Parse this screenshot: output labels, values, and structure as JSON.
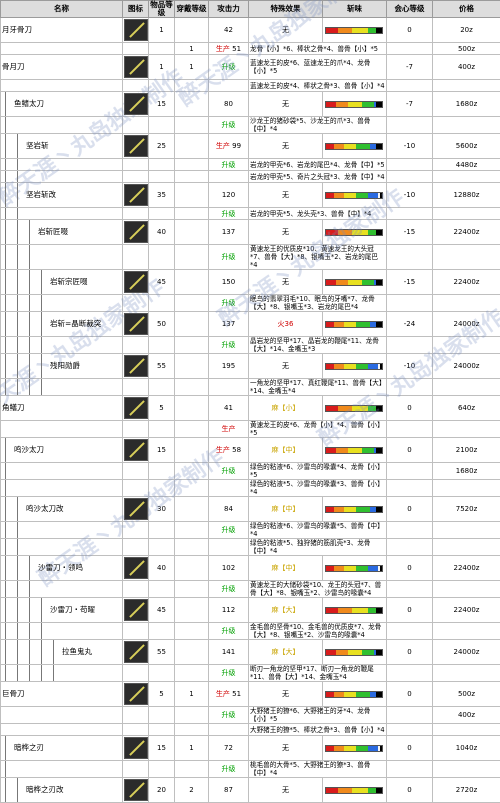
{
  "headers": {
    "name": "名称",
    "icon": "图标",
    "level": "物品等级",
    "slots": "穿戴等级",
    "attack": "攻击力",
    "special": "特殊效果",
    "sharp": "斩味",
    "crit": "会心等级",
    "price": "价格"
  },
  "watermark_text": "醉天涯丶丸岛独家制作",
  "rows": [
    {
      "name": "月牙骨刀",
      "indent": 0,
      "level": "1",
      "slots": "",
      "note": "",
      "attack": "42",
      "special": "无",
      "mat": "",
      "crit": "0",
      "price": "20z"
    },
    {
      "name": "",
      "indent": 0,
      "level": "",
      "slots": "1",
      "note": "生产",
      "attack": "51",
      "special": "无",
      "mat": "龙骨【小】*6、棒状之骨*4、兽骨【小】*5",
      "crit": "",
      "price": "500z"
    },
    {
      "name": "骨月刀",
      "indent": 0,
      "level": "1",
      "slots": "1",
      "note": "升级",
      "attack": "",
      "special": "",
      "mat": "蓝速龙王的皮*6、蓝速龙王的爪*4、龙骨【小】*5",
      "crit": "-7",
      "price": "400z"
    },
    {
      "name": "",
      "indent": 0,
      "level": "",
      "slots": "",
      "note": "",
      "attack": "",
      "special": "",
      "mat": "蓝速龙王的皮*4、棒状之骨*3、兽骨【小】*4",
      "crit": "",
      "price": ""
    },
    {
      "name": "鱼鳍太刀",
      "indent": 1,
      "level": "15",
      "slots": "",
      "note": "",
      "attack": "80",
      "special": "无",
      "mat": "",
      "crit": "-7",
      "price": "1680z"
    },
    {
      "name": "",
      "indent": 1,
      "level": "",
      "slots": "",
      "note": "升级",
      "attack": "",
      "special": "",
      "mat": "沙龙王的猪砂袋*5、沙龙王的爪*3、兽骨【中】*4",
      "crit": "",
      "price": ""
    },
    {
      "name": "坚岩斩",
      "indent": 2,
      "level": "25",
      "slots": "",
      "note": "生产",
      "attack": "99",
      "special": "无",
      "mat": "",
      "crit": "-10",
      "price": "5600z"
    },
    {
      "name": "",
      "indent": 2,
      "level": "",
      "slots": "",
      "note": "升级",
      "attack": "",
      "special": "",
      "mat": "岩龙的甲壳*6、岩龙的尾巴*4、龙骨【中】*5",
      "crit": "",
      "price": "4480z"
    },
    {
      "name": "",
      "indent": 2,
      "level": "",
      "slots": "",
      "note": "",
      "attack": "",
      "special": "",
      "mat": "岩龙的甲壳*5、奇片之头冠*3、龙骨【中】*4",
      "crit": "",
      "price": ""
    },
    {
      "name": "坚岩斩改",
      "indent": 2,
      "level": "35",
      "slots": "",
      "note": "",
      "attack": "120",
      "special": "无",
      "mat": "",
      "crit": "-10",
      "price": "12880z"
    },
    {
      "name": "",
      "indent": 2,
      "level": "",
      "slots": "",
      "note": "升级",
      "attack": "",
      "special": "",
      "mat": "岩龙的甲壳*5、龙头壳*3、兽骨【中】*4",
      "crit": "",
      "price": ""
    },
    {
      "name": "岩斩匠啜",
      "indent": 3,
      "level": "40",
      "slots": "",
      "note": "",
      "attack": "137",
      "special": "无",
      "mat": "",
      "crit": "-15",
      "price": "22400z"
    },
    {
      "name": "",
      "indent": 3,
      "level": "",
      "slots": "",
      "note": "升级",
      "attack": "",
      "special": "",
      "mat": "黄速龙王的优质皮*10、黄速龙王的大头冠*7、兽骨【大】*8、银嘴玉*2、岩龙的尾巴*4",
      "crit": "",
      "price": ""
    },
    {
      "name": "岩斩宗匠啜",
      "indent": 4,
      "level": "45",
      "slots": "",
      "note": "",
      "attack": "150",
      "special": "无",
      "mat": "",
      "crit": "-15",
      "price": "22400z"
    },
    {
      "name": "",
      "indent": 4,
      "level": "",
      "slots": "",
      "note": "升级",
      "attack": "",
      "special": "",
      "mat": "眠鸟的翡翠羽毛*10、眠鸟的牙嘴*7、龙骨【大】*8、银嘴玉*3、岩龙的尾巴*4",
      "crit": "",
      "price": ""
    },
    {
      "name": "岩斩=晶断裁突",
      "indent": 4,
      "level": "50",
      "slots": "",
      "note": "",
      "attack": "137",
      "special": "火36",
      "mat": "",
      "crit": "-24",
      "price": "24000z"
    },
    {
      "name": "",
      "indent": 4,
      "level": "",
      "slots": "",
      "note": "升级",
      "attack": "",
      "special": "",
      "mat": "晶岩龙的坚甲*17、晶岩龙的鞭尾*11、龙骨【大】*14、金嘴玉*3",
      "crit": "",
      "price": ""
    },
    {
      "name": "残阳勋爵",
      "indent": 4,
      "level": "55",
      "slots": "",
      "note": "",
      "attack": "195",
      "special": "无",
      "mat": "",
      "crit": "-10",
      "price": "24000z"
    },
    {
      "name": "",
      "indent": 4,
      "level": "",
      "slots": "",
      "note": "",
      "attack": "",
      "special": "",
      "mat": "一角龙的坚甲*17、真红鞭尾*11、兽骨【大】*14、金嘴玉*4",
      "crit": "",
      "price": ""
    },
    {
      "name": "角鳝刀",
      "indent": 0,
      "level": "5",
      "slots": "",
      "note": "",
      "attack": "41",
      "special": "麻【小】",
      "mat": "",
      "crit": "0",
      "price": "640z"
    },
    {
      "name": "",
      "indent": 0,
      "level": "",
      "slots": "",
      "note": "生产",
      "attack": "",
      "special": "",
      "mat": "黄速龙王的皮*6、龙骨【小】*4、兽骨【小】*5",
      "crit": "",
      "price": ""
    },
    {
      "name": "鸣沙太刀",
      "indent": 1,
      "level": "15",
      "slots": "",
      "note": "生产",
      "attack": "58",
      "special": "麻【中】",
      "mat": "",
      "crit": "0",
      "price": "2100z"
    },
    {
      "name": "",
      "indent": 1,
      "level": "",
      "slots": "",
      "note": "升级",
      "attack": "",
      "special": "",
      "mat": "绿色的粘液*6、沙雷鸟的喙囊*4、龙骨【小】*5",
      "crit": "",
      "price": "1680z"
    },
    {
      "name": "",
      "indent": 1,
      "level": "",
      "slots": "",
      "note": "",
      "attack": "",
      "special": "",
      "mat": "绿色的粘液*5、沙雷鸟的喙囊*3、兽骨【小】*4",
      "crit": "",
      "price": ""
    },
    {
      "name": "鸣沙太刀改",
      "indent": 2,
      "level": "30",
      "slots": "",
      "note": "",
      "attack": "84",
      "special": "麻【中】",
      "mat": "",
      "crit": "0",
      "price": "7520z"
    },
    {
      "name": "",
      "indent": 2,
      "level": "",
      "slots": "",
      "note": "升级",
      "attack": "",
      "special": "",
      "mat": "绿色的粘液*6、沙雷鸟的喙囊*5、兽骨【中】*4",
      "crit": "",
      "price": ""
    },
    {
      "name": "",
      "indent": 2,
      "level": "",
      "slots": "",
      "note": "",
      "attack": "",
      "special": "",
      "mat": "绿色的粘液*5、独狩猪的筋肌壳*3、龙骨【中】*4",
      "crit": "",
      "price": ""
    },
    {
      "name": "沙雷刀・领鸣",
      "indent": 3,
      "level": "40",
      "slots": "",
      "note": "",
      "attack": "102",
      "special": "麻【中】",
      "mat": "",
      "crit": "0",
      "price": "22400z"
    },
    {
      "name": "",
      "indent": 3,
      "level": "",
      "slots": "",
      "note": "升级",
      "attack": "",
      "special": "",
      "mat": "黄速龙王的大储砂袋*10、龙王的头冠*7、兽骨【大】*8、银嘴玉*2、沙雷鸟的喙囊*4",
      "crit": "",
      "price": ""
    },
    {
      "name": "沙雷刀・苟曜",
      "indent": 4,
      "level": "45",
      "slots": "",
      "note": "",
      "attack": "112",
      "special": "麻【大】",
      "mat": "",
      "crit": "0",
      "price": "22400z"
    },
    {
      "name": "",
      "indent": 4,
      "level": "",
      "slots": "",
      "note": "升级",
      "attack": "",
      "special": "",
      "mat": "金毛兽的坚骨*10、金毛兽的优质皮*7、龙骨【大】*8、银嘴玉*2、沙雷鸟的喙囊*4",
      "crit": "",
      "price": ""
    },
    {
      "name": "拉鱼鬼丸",
      "indent": 5,
      "level": "55",
      "slots": "",
      "note": "",
      "attack": "141",
      "special": "麻【大】",
      "mat": "",
      "crit": "0",
      "price": "24000z"
    },
    {
      "name": "",
      "indent": 5,
      "level": "",
      "slots": "",
      "note": "升级",
      "attack": "",
      "special": "",
      "mat": "断刃一角龙的坚甲*17、断刃一角龙的鞭尾*11、兽骨【大】*14、金嘴玉*4",
      "crit": "",
      "price": ""
    },
    {
      "name": "巨骨刀",
      "indent": 0,
      "level": "5",
      "slots": "1",
      "note": "生产",
      "attack": "51",
      "special": "无",
      "mat": "",
      "crit": "0",
      "price": "500z"
    },
    {
      "name": "",
      "indent": 0,
      "level": "",
      "slots": "",
      "note": "升级",
      "attack": "",
      "special": "",
      "mat": "大野猪王的獠*6、大野猪王的牙*4、龙骨【小】*5",
      "crit": "",
      "price": "400z"
    },
    {
      "name": "",
      "indent": 0,
      "level": "",
      "slots": "",
      "note": "",
      "attack": "",
      "special": "",
      "mat": "大野猪王的獠*5、棒状之骨*3、兽骨【小】*4",
      "crit": "",
      "price": ""
    },
    {
      "name": "暗桦之刃",
      "indent": 1,
      "level": "15",
      "slots": "1",
      "note": "",
      "attack": "72",
      "special": "无",
      "mat": "",
      "crit": "0",
      "price": "1040z"
    },
    {
      "name": "",
      "indent": 1,
      "level": "",
      "slots": "",
      "note": "升级",
      "attack": "",
      "special": "",
      "mat": "桃毛兽的大骨*5、大野猪王的獠*3、兽骨【中】*4",
      "crit": "",
      "price": ""
    },
    {
      "name": "暗桦之刃改",
      "indent": 2,
      "level": "20",
      "slots": "2",
      "note": "",
      "attack": "87",
      "special": "无",
      "mat": "",
      "crit": "0",
      "price": "2720z"
    }
  ],
  "sharpness": [
    {
      "red": 12,
      "orange": 14,
      "yellow": 16,
      "green": 8,
      "blue": 0,
      "white": 0
    },
    {
      "red": 10,
      "orange": 12,
      "yellow": 14,
      "green": 12,
      "blue": 2,
      "white": 0
    },
    {
      "red": 8,
      "orange": 10,
      "yellow": 12,
      "green": 14,
      "blue": 6,
      "white": 0
    },
    {
      "red": 8,
      "orange": 10,
      "yellow": 12,
      "green": 12,
      "blue": 10,
      "white": 2
    }
  ]
}
